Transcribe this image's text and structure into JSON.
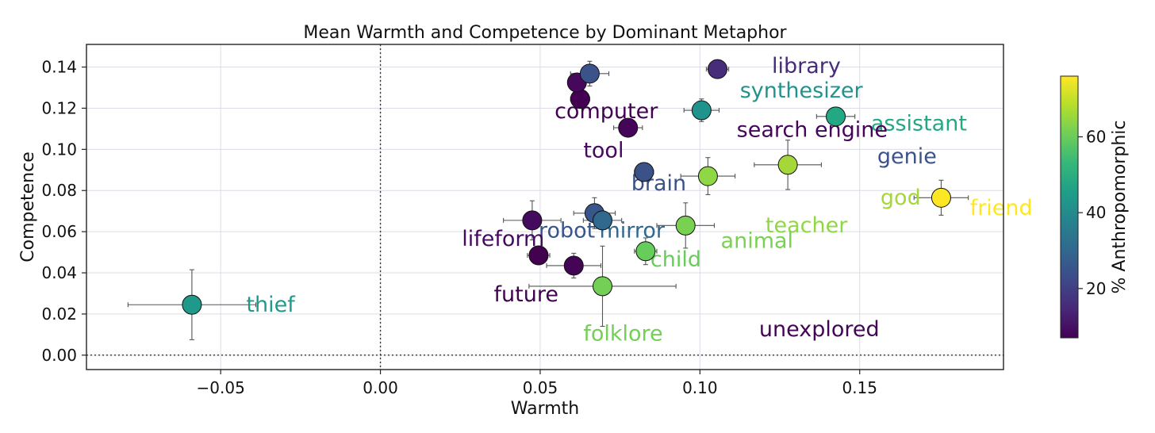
{
  "chart_data": {
    "type": "scatter",
    "title": "Mean Warmth and Competence by Dominant Metaphor",
    "xlabel": "Warmth",
    "ylabel": "Competence",
    "xlim": [
      -0.092,
      0.195
    ],
    "ylim": [
      -0.007,
      0.151
    ],
    "xticks": [
      -0.05,
      0.0,
      0.05,
      0.1,
      0.15
    ],
    "xtick_labels": [
      "−0.05",
      "0.00",
      "0.05",
      "0.10",
      "0.15"
    ],
    "yticks": [
      0.0,
      0.02,
      0.04,
      0.06,
      0.08,
      0.1,
      0.12,
      0.14
    ],
    "ytick_labels": [
      "0.00",
      "0.02",
      "0.04",
      "0.06",
      "0.08",
      "0.10",
      "0.12",
      "0.14"
    ],
    "grid": true,
    "reference_lines": {
      "x": 0.0,
      "y": 0.0
    },
    "colorbar": {
      "label": "% Anthropomorphic",
      "range": [
        7,
        76
      ],
      "ticks": [
        20,
        40,
        60
      ],
      "tick_labels": [
        "20",
        "40",
        "60"
      ],
      "colors": [
        "#440154",
        "#482878",
        "#3e4989",
        "#31688e",
        "#26828e",
        "#1f9e89",
        "#35b779",
        "#6ece58",
        "#b5de2b",
        "#fde725"
      ]
    },
    "points": [
      {
        "name": "thief",
        "x": -0.059,
        "y": 0.0245,
        "xerr": 0.02,
        "yerr": 0.017,
        "anthro": 42,
        "color": "#1f9a8a",
        "label_x": -0.042,
        "label_y": 0.025
      },
      {
        "name": "library",
        "x": 0.1055,
        "y": 0.139,
        "xerr": 0.0035,
        "yerr": 0.0015,
        "anthro": 17,
        "color": "#472c7a",
        "label_x": 0.1225,
        "label_y": 0.141
      },
      {
        "name": "synthesizer",
        "x": 0.1005,
        "y": 0.119,
        "xerr": 0.0055,
        "yerr": 0.0055,
        "anthro": 43,
        "color": "#20938c",
        "label_x": 0.1125,
        "label_y": 0.129
      },
      {
        "name": "assistant",
        "x": 0.1425,
        "y": 0.116,
        "xerr": 0.006,
        "yerr": 0.003,
        "anthro": 48,
        "color": "#23a884",
        "label_x": 0.1535,
        "label_y": 0.113
      },
      {
        "name": "computer",
        "x": 0.0625,
        "y": 0.1245,
        "xerr": 0.003,
        "yerr": 0.004,
        "anthro": 7,
        "color": "#440154",
        "label_x": 0.0545,
        "label_y": 0.119
      },
      {
        "name": "search engine",
        "x": 0.0775,
        "y": 0.1105,
        "xerr": 0.0045,
        "yerr": 0.002,
        "anthro": 9,
        "color": "#450559",
        "label_x": 0.1115,
        "label_y": 0.11
      },
      {
        "name": "tool",
        "x": 0.0615,
        "y": 0.1325,
        "xerr": 0.002,
        "yerr": 0.004,
        "anthro": 10,
        "color": "#46085c",
        "label_x": 0.0635,
        "label_y": 0.1
      },
      {
        "name": "genie",
        "x": 0.0655,
        "y": 0.1368,
        "xerr": 0.006,
        "yerr": 0.006,
        "anthro": 23,
        "color": "#3b528b",
        "label_x": 0.1555,
        "label_y": 0.097
      },
      {
        "name": "brain",
        "x": 0.0825,
        "y": 0.089,
        "xerr": 0.003,
        "yerr": 0.0025,
        "anthro": 25,
        "color": "#3b5288",
        "label_x": 0.0785,
        "label_y": 0.084
      },
      {
        "name": "god",
        "x": 0.1275,
        "y": 0.0925,
        "xerr": 0.0105,
        "yerr": 0.012,
        "anthro": 66,
        "color": "#a5d63a",
        "label_x": 0.1565,
        "label_y": 0.077
      },
      {
        "name": "friend",
        "x": 0.1755,
        "y": 0.0765,
        "xerr": 0.0085,
        "yerr": 0.0085,
        "anthro": 76,
        "color": "#fde725",
        "label_x": 0.1845,
        "label_y": 0.072
      },
      {
        "name": "teacher",
        "x": 0.1025,
        "y": 0.087,
        "xerr": 0.0085,
        "yerr": 0.009,
        "anthro": 63,
        "color": "#8fd744",
        "label_x": 0.1205,
        "label_y": 0.0635
      },
      {
        "name": "robot",
        "x": 0.067,
        "y": 0.069,
        "xerr": 0.0065,
        "yerr": 0.0075,
        "anthro": 26,
        "color": "#39568c",
        "label_x": 0.0495,
        "label_y": 0.061
      },
      {
        "name": "mirror",
        "x": 0.0695,
        "y": 0.0655,
        "xerr": 0.006,
        "yerr": 0.0045,
        "anthro": 28,
        "color": "#31688e",
        "label_x": 0.0685,
        "label_y": 0.061
      },
      {
        "name": "lifeform",
        "x": 0.0475,
        "y": 0.0655,
        "xerr": 0.009,
        "yerr": 0.0095,
        "anthro": 11,
        "color": "#440a5e",
        "label_x": 0.0255,
        "label_y": 0.057
      },
      {
        "name": "animal",
        "x": 0.0955,
        "y": 0.063,
        "xerr": 0.009,
        "yerr": 0.011,
        "anthro": 60,
        "color": "#7ad151",
        "label_x": 0.1065,
        "label_y": 0.056
      },
      {
        "name": "child",
        "x": 0.083,
        "y": 0.0505,
        "xerr": 0.0035,
        "yerr": 0.0065,
        "anthro": 59,
        "color": "#66cc5a",
        "label_x": 0.0845,
        "label_y": 0.047
      },
      {
        "name": "future",
        "x": 0.0495,
        "y": 0.0485,
        "xerr": 0.0035,
        "yerr": 0.004,
        "anthro": 8,
        "color": "#42024f",
        "label_x": 0.0355,
        "label_y": 0.03
      },
      {
        "name": "unexplored",
        "x": 0.0605,
        "y": 0.0435,
        "xerr": 0.0085,
        "yerr": 0.006,
        "anthro": 9,
        "color": "#440555",
        "label_x": 0.1185,
        "label_y": 0.013
      },
      {
        "name": "folklore",
        "x": 0.0695,
        "y": 0.0335,
        "xerr": 0.023,
        "yerr": 0.0195,
        "anthro": 61,
        "color": "#73cf55",
        "label_x": 0.0635,
        "label_y": 0.011
      }
    ]
  }
}
